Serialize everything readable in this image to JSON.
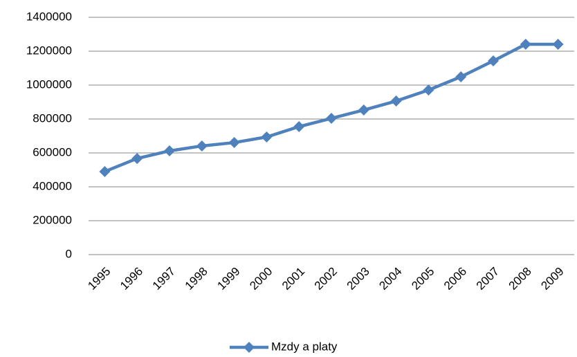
{
  "chart_data": {
    "type": "line",
    "categories": [
      "1995",
      "1996",
      "1997",
      "1998",
      "1999",
      "2000",
      "2001",
      "2002",
      "2003",
      "2004",
      "2005",
      "2006",
      "2007",
      "2008",
      "2009"
    ],
    "series": [
      {
        "name": "Mzdy a platy",
        "color": "#4f81bd",
        "values": [
          490000,
          567000,
          612000,
          641000,
          661000,
          694000,
          755000,
          804000,
          853000,
          906000,
          971000,
          1049000,
          1143000,
          1241000,
          1241000
        ]
      }
    ],
    "ylim": [
      0,
      1400000
    ],
    "yticks": [
      0,
      200000,
      400000,
      600000,
      800000,
      1000000,
      1200000,
      1400000
    ],
    "grid": true,
    "legend": "bottom"
  }
}
